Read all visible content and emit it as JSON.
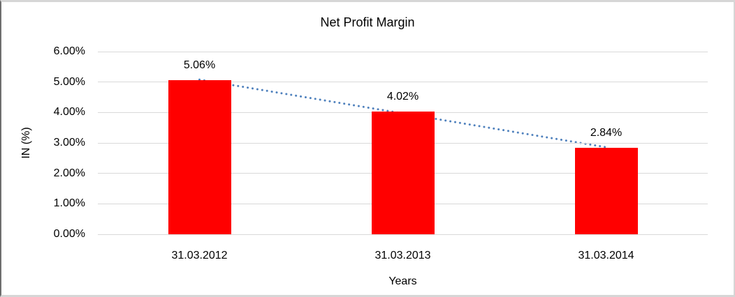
{
  "chart_data": {
    "type": "bar",
    "title": "Net Profit Margin",
    "categories": [
      "31.03.2012",
      "31.03.2013",
      "31.03.2014"
    ],
    "values": [
      5.06,
      4.02,
      2.84
    ],
    "data_labels": [
      "5.06%",
      "4.02%",
      "2.84%"
    ],
    "xlabel": "Years",
    "ylabel": "IN (%)",
    "ylim": [
      0,
      6
    ],
    "ytick_labels": [
      "0.00%",
      "1.00%",
      "2.00%",
      "3.00%",
      "4.00%",
      "5.00%",
      "6.00%"
    ],
    "grid": true,
    "legend": "none",
    "colors": {
      "bar": "#FF0000",
      "trendline": "#4F81BD",
      "gridline": "#D9D9D9",
      "text": "#000000"
    },
    "trendline": {
      "type": "linear",
      "style": "dotted",
      "color": "#4F81BD",
      "start_value_pct": 5.08,
      "end_value_pct": 2.86
    }
  }
}
